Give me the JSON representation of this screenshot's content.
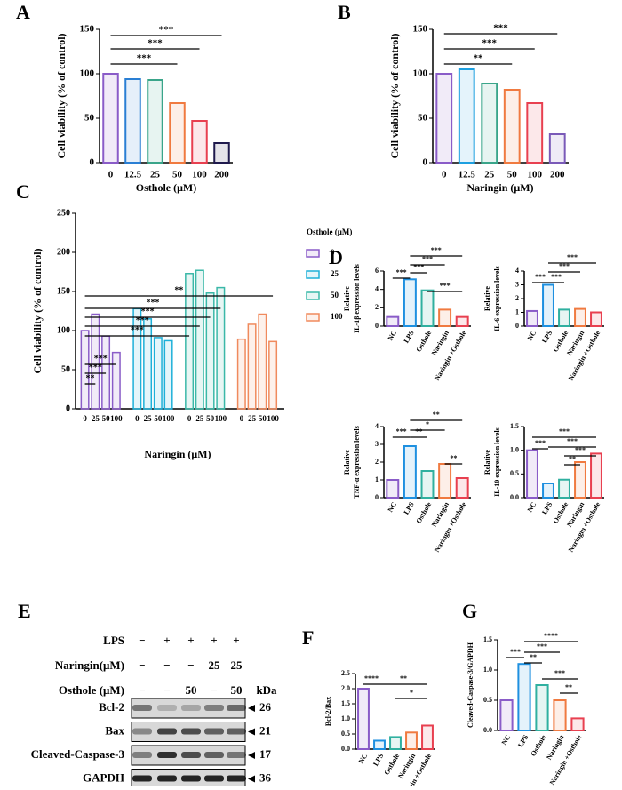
{
  "chart_data": [
    {
      "type": "bar",
      "label": "A",
      "ylabel": [
        "Cell viability (% of control)"
      ],
      "xlabel": "Osthole (μM)",
      "categories": [
        "0",
        "12.5",
        "25",
        "50",
        "100",
        "200"
      ],
      "values": [
        100,
        94,
        93,
        67,
        47,
        22
      ],
      "colors": [
        "#8a5cc8",
        "#2a7fd4",
        "#3aa58a",
        "#f07a40",
        "#e84050",
        "#1f1a4d"
      ],
      "ylim": [
        0,
        150
      ],
      "yticks": [
        0,
        50,
        100,
        150
      ],
      "annotations": [
        "***",
        "***",
        "***"
      ]
    },
    {
      "type": "bar",
      "label": "B",
      "ylabel": [
        "Cell viability (% of control)"
      ],
      "xlabel": "Naringin (μM)",
      "categories": [
        "0",
        "12.5",
        "25",
        "50",
        "100",
        "200"
      ],
      "values": [
        100,
        105,
        89,
        82,
        67,
        32
      ],
      "colors": [
        "#8a5cc8",
        "#1ea0e0",
        "#3aa58a",
        "#f07a40",
        "#e84050",
        "#7a5ab8"
      ],
      "ylim": [
        0,
        150
      ],
      "yticks": [
        0,
        50,
        100,
        150
      ],
      "annotations": [
        "***",
        "***",
        "**"
      ]
    },
    {
      "type": "grouped_bar",
      "label": "C",
      "ylabel": [
        "Cell viability (% of control)"
      ],
      "xlabel": "Naringin (μM)",
      "categories": [
        "0",
        "25",
        "50",
        "100"
      ],
      "legend_title": "Osthole (μM)",
      "series": [
        {
          "name": "0",
          "color": "#8a5cc8",
          "values": [
            100,
            121,
            93,
            72
          ]
        },
        {
          "name": "25",
          "color": "#1eb0d8",
          "values": [
            128,
            115,
            91,
            87
          ]
        },
        {
          "name": "50",
          "color": "#3ab8a8",
          "values": [
            173,
            177,
            148,
            155
          ]
        },
        {
          "name": "100",
          "color": "#f08a5d",
          "values": [
            89,
            108,
            121,
            86
          ]
        }
      ],
      "ylim": [
        0,
        250
      ],
      "yticks": [
        0,
        50,
        100,
        150,
        200,
        250
      ],
      "annotations": [
        "**",
        "***",
        "***",
        "***",
        "***",
        "***",
        "***",
        "**"
      ]
    },
    {
      "type": "bar",
      "label": "D",
      "ylabel": [
        "Relative",
        "IL-1β expression levels"
      ],
      "categories": [
        "NC",
        "LPS",
        "Osthole",
        "Naringin",
        "Naringin +Osthole"
      ],
      "values": [
        1.0,
        5.1,
        3.9,
        1.8,
        1.0
      ],
      "colors": [
        "#8a5cc8",
        "#1e90e0",
        "#30b0a0",
        "#f07a40",
        "#e84050"
      ],
      "ylim": [
        0,
        6
      ],
      "yticks": [
        0,
        2,
        4,
        6
      ],
      "annotations": [
        "***",
        "***",
        "***",
        "***",
        "***"
      ]
    },
    {
      "type": "bar",
      "ylabel": [
        "Relative",
        "IL-6 expression levels"
      ],
      "categories": [
        "NC",
        "LPS",
        "Osthole",
        "Naringin",
        "Naringin +Osthole"
      ],
      "values": [
        1.1,
        3.0,
        1.2,
        1.25,
        1.0
      ],
      "colors": [
        "#8a5cc8",
        "#1e90e0",
        "#30b0a0",
        "#f07a40",
        "#e84050"
      ],
      "ylim": [
        0,
        4
      ],
      "yticks": [
        0,
        1,
        2,
        3,
        4
      ],
      "annotations": [
        "***",
        "***",
        "***",
        "***"
      ]
    },
    {
      "type": "bar",
      "ylabel": [
        "Relative",
        "TNF-α expression levels"
      ],
      "categories": [
        "NC",
        "LPS",
        "Osthole",
        "Naringin",
        "Naringin +Osthole"
      ],
      "values": [
        1.0,
        2.9,
        1.5,
        1.9,
        1.1
      ],
      "colors": [
        "#8a5cc8",
        "#1e90e0",
        "#30b0a0",
        "#f07a40",
        "#e84050"
      ],
      "ylim": [
        0,
        4
      ],
      "yticks": [
        0,
        1,
        2,
        3,
        4
      ],
      "annotations": [
        "**",
        "*",
        "**",
        "***",
        "**"
      ]
    },
    {
      "type": "bar",
      "ylabel": [
        "Relative",
        "IL-10 expression levels"
      ],
      "categories": [
        "NC",
        "LPS",
        "Osthole",
        "Naringin",
        "Naringin +Osthole"
      ],
      "values": [
        1.0,
        0.3,
        0.38,
        0.75,
        0.93
      ],
      "colors": [
        "#8a5cc8",
        "#1e90e0",
        "#30b0a0",
        "#f07a40",
        "#e84050"
      ],
      "ylim": [
        0,
        1.5
      ],
      "yticks": [
        {
          "value": 0,
          "label": "0.0"
        },
        {
          "value": 0.5,
          "label": "0.5"
        },
        {
          "value": 1,
          "label": "1.0"
        },
        {
          "value": 1.5,
          "label": "1.5"
        }
      ],
      "annotations": [
        "***",
        "***",
        "***",
        "***",
        "**"
      ]
    },
    {
      "type": "bar",
      "label": "F",
      "ylabel": [
        "Bcl-2/Bax"
      ],
      "categories": [
        "NC",
        "LPS",
        "Osthole",
        "Naringin",
        "Naringin +Osthole"
      ],
      "values": [
        2.0,
        0.28,
        0.4,
        0.55,
        0.78
      ],
      "colors": [
        "#8a5cc8",
        "#1e90e0",
        "#30b0a0",
        "#f07a40",
        "#e84050"
      ],
      "ylim": [
        0,
        2.5
      ],
      "yticks": [
        {
          "value": 0,
          "label": "0.0"
        },
        {
          "value": 0.5,
          "label": "0.5"
        },
        {
          "value": 1,
          "label": "1.0"
        },
        {
          "value": 1.5,
          "label": "1.5"
        },
        {
          "value": 2,
          "label": "2.0"
        },
        {
          "value": 2.5,
          "label": "2.5"
        }
      ],
      "annotations": [
        "****",
        "**",
        "*"
      ]
    },
    {
      "type": "bar",
      "label": "G",
      "ylabel": [
        "Cleaved-Caspase-3/GAPDH"
      ],
      "categories": [
        "NC",
        "LPS",
        "Osthole",
        "Naringin",
        "Naringin +Osthole"
      ],
      "values": [
        0.5,
        1.1,
        0.75,
        0.5,
        0.2
      ],
      "colors": [
        "#8a5cc8",
        "#1e90e0",
        "#30b0a0",
        "#f07a40",
        "#e84050"
      ],
      "ylim": [
        0,
        1.5
      ],
      "yticks": [
        {
          "value": 0,
          "label": "0.0"
        },
        {
          "value": 0.5,
          "label": "0.5"
        },
        {
          "value": 1,
          "label": "1.0"
        },
        {
          "value": 1.5,
          "label": "1.5"
        }
      ],
      "annotations": [
        "****",
        "***",
        "***",
        "**",
        "***",
        "**"
      ]
    }
  ],
  "blot": {
    "label": "E",
    "treatments": [
      {
        "name": "LPS",
        "signs": [
          "−",
          "+",
          "+",
          "+",
          "+"
        ]
      },
      {
        "name": "Naringin(μM)",
        "signs": [
          "−",
          "−",
          "−",
          "25",
          "25"
        ]
      },
      {
        "name": "Osthole (μM)",
        "signs": [
          "−",
          "−",
          "50",
          "−",
          "50"
        ]
      }
    ],
    "unit": "kDa",
    "bands": [
      {
        "name": "Bcl-2",
        "kda": 26
      },
      {
        "name": "Bax",
        "kda": 21
      },
      {
        "name": "Cleaved-Caspase-3",
        "kda": 17
      },
      {
        "name": "GAPDH",
        "kda": 36
      }
    ]
  }
}
